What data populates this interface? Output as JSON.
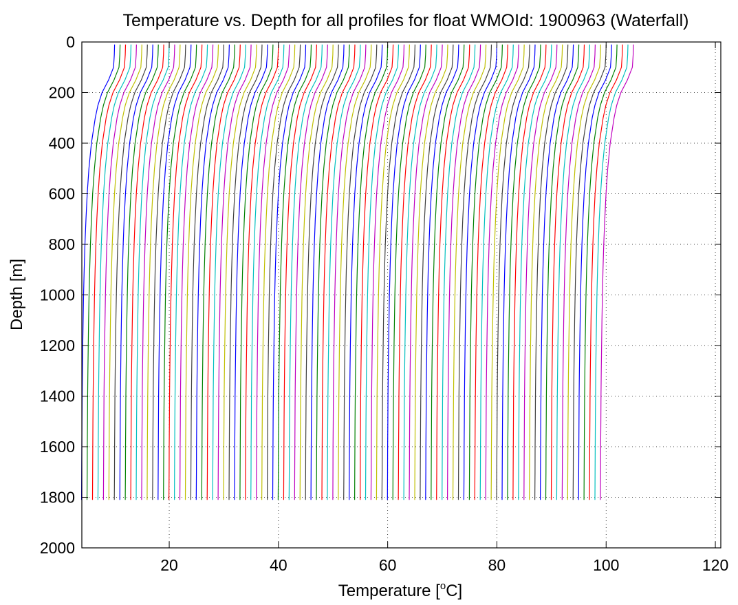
{
  "chart_data": {
    "type": "line",
    "title": "Temperature vs. Depth for all profiles for float WMOId: 1900963 (Waterfall)",
    "xlabel_prefix": "Temperature [",
    "xlabel_sup": "o",
    "xlabel_suffix": "C]",
    "ylabel": "Depth [m]",
    "xlim": [
      4,
      121
    ],
    "ylim": [
      0,
      2000
    ],
    "y_reversed": true,
    "grid": true,
    "x_ticks": [
      20,
      40,
      60,
      80,
      100,
      120
    ],
    "x_tick_labels": [
      "20",
      "40",
      "60",
      "80",
      "100",
      "120"
    ],
    "y_ticks": [
      0,
      200,
      400,
      600,
      800,
      1000,
      1200,
      1400,
      1600,
      1800,
      2000
    ],
    "y_tick_labels": [
      "0",
      "200",
      "400",
      "600",
      "800",
      "1000",
      "1200",
      "1400",
      "1600",
      "1800",
      "2000"
    ],
    "color_cycle": [
      "#0000ff",
      "#008000",
      "#ff0000",
      "#00bfbf",
      "#bf00bf",
      "#bfbf00",
      "#404040"
    ],
    "series_count": 96,
    "profile": {
      "depths": [
        10,
        50,
        100,
        150,
        200,
        250,
        300,
        400,
        500,
        600,
        700,
        800,
        900,
        1000,
        1100,
        1200,
        1300,
        1400,
        1500,
        1600,
        1700,
        1810
      ],
      "temperatures": [
        6.0,
        5.95,
        5.8,
        4.9,
        3.7,
        2.95,
        2.45,
        1.75,
        1.3,
        0.98,
        0.75,
        0.57,
        0.43,
        0.32,
        0.24,
        0.17,
        0.11,
        0.06,
        0.03,
        0.0,
        -0.02,
        -0.05
      ]
    },
    "offsets": [
      0.0,
      1.0,
      2.0,
      3.0,
      4.0,
      5.0,
      6.0,
      7.0,
      8.0,
      9.0,
      10.0,
      11.0,
      12.0,
      13.0,
      14.0,
      15.0,
      16.0,
      17.0,
      18.0,
      19.0,
      20.0,
      21.0,
      22.0,
      23.0,
      24.0,
      25.0,
      26.0,
      27.0,
      28.0,
      29.0,
      30.0,
      31.0,
      32.0,
      33.0,
      34.0,
      35.0,
      36.0,
      37.0,
      38.0,
      39.0,
      40.0,
      41.0,
      42.0,
      43.0,
      44.0,
      45.0,
      46.0,
      47.0,
      48.0,
      49.0,
      50.0,
      51.0,
      52.0,
      53.0,
      54.0,
      55.0,
      56.0,
      57.0,
      58.0,
      59.0,
      60.0,
      61.0,
      62.0,
      63.0,
      64.0,
      65.0,
      66.0,
      67.0,
      68.0,
      69.0,
      70.0,
      71.0,
      72.0,
      73.0,
      74.0,
      75.0,
      76.0,
      77.0,
      78.0,
      79.0,
      80.0,
      81.0,
      82.0,
      83.0,
      84.0,
      85.0,
      86.0,
      87.0,
      88.0,
      89.0,
      90.0,
      91.0,
      92.0,
      93.0,
      94.0,
      95.0
    ],
    "warmth_scale": [
      0.0,
      0.0,
      0.0,
      0.0,
      0.0,
      0.0,
      0.0,
      0.0,
      0.0,
      0.0,
      0.0,
      0.0,
      0.0,
      0.0,
      0.0,
      0.0,
      0.0,
      0.0,
      0.0,
      0.0,
      0.0,
      0.0,
      0.0,
      0.0,
      0.0,
      0.0,
      0.0,
      0.0,
      0.0,
      0.0,
      0.0,
      0.0,
      0.0,
      0.0,
      0.0,
      0.0,
      0.0,
      0.0,
      0.0,
      0.0,
      0.0,
      0.0,
      0.0,
      0.0,
      0.0,
      0.0,
      0.0,
      0.0,
      0.0,
      0.0,
      0.0,
      0.0,
      0.0,
      0.0,
      0.0,
      0.0,
      0.0,
      0.0,
      0.0,
      0.0,
      0.0,
      0.0,
      0.0,
      0.0,
      0.0,
      0.0,
      0.0,
      0.0,
      0.0,
      0.0,
      0.0,
      0.0,
      0.0,
      0.0,
      0.0,
      0.0,
      0.0,
      0.0,
      0.0,
      0.0,
      0.0,
      0.0,
      0.0,
      0.0,
      0.0,
      0.0,
      0.0,
      0.0,
      0.0,
      0.0,
      0.0,
      0.0,
      0.0,
      0.0,
      0.0,
      0.0
    ]
  }
}
